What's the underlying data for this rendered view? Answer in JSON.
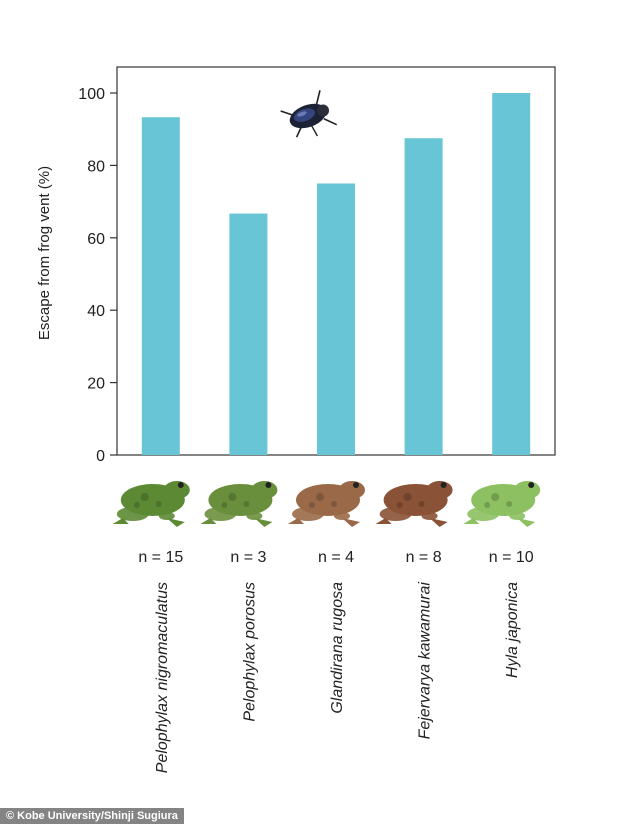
{
  "chart_data": {
    "type": "bar",
    "ylabel": "Escape from frog vent (%)",
    "ylim": [
      0,
      105
    ],
    "yticks": [
      0,
      20,
      40,
      60,
      80,
      100
    ],
    "grid": false,
    "bar_color": "#67c5d6",
    "categories": [
      "Pelophylax nigromaculatus",
      "Pelophylax porosus",
      "Glandirana rugosa",
      "Fejervarya kawamurai",
      "Hyla japonica"
    ],
    "values": [
      93.3,
      66.7,
      75.0,
      87.5,
      100.0
    ],
    "sample_sizes": [
      "n = 15",
      "n = 3",
      "n = 4",
      "n = 8",
      "n = 10"
    ],
    "frog_colors": [
      "#5c8a34",
      "#6a8f3c",
      "#9a6a48",
      "#8a5236",
      "#8cc060"
    ],
    "beetle_icon": "water-beetle-icon"
  },
  "credit": "© Kobe University/Shinji Sugiura"
}
